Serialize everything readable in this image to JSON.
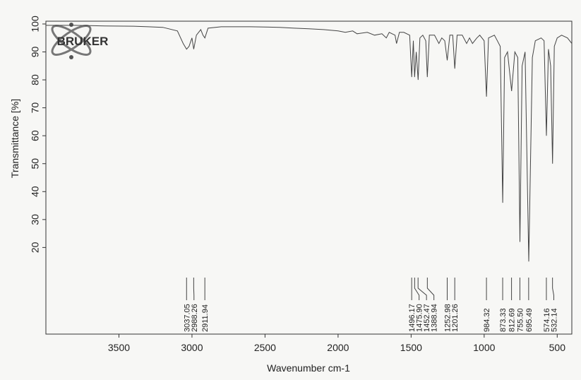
{
  "logo": "BRUKER",
  "chart_data": {
    "type": "line",
    "xlabel": "Wavenumber cm-1",
    "ylabel": "Transmittance [%]",
    "xlim": [
      4000,
      400
    ],
    "ylim": [
      -11,
      101
    ],
    "xticks": [
      3500,
      3000,
      2500,
      2000,
      1500,
      1000,
      500
    ],
    "yticks": [
      20,
      30,
      40,
      50,
      60,
      70,
      80,
      90,
      100
    ],
    "series": [
      {
        "color": "#444",
        "x": [
          4000,
          3800,
          3600,
          3400,
          3300,
          3200,
          3100,
          3060,
          3037,
          3020,
          3000,
          2988,
          2970,
          2940,
          2925,
          2912,
          2890,
          2800,
          2600,
          2400,
          2300,
          2200,
          2100,
          2000,
          1950,
          1900,
          1870,
          1800,
          1750,
          1700,
          1670,
          1650,
          1610,
          1600,
          1580,
          1550,
          1510,
          1496,
          1485,
          1476,
          1465,
          1452,
          1440,
          1420,
          1400,
          1389,
          1375,
          1340,
          1310,
          1290,
          1270,
          1253,
          1235,
          1215,
          1201,
          1185,
          1150,
          1120,
          1100,
          1080,
          1050,
          1030,
          1000,
          984,
          970,
          930,
          910,
          890,
          873,
          860,
          840,
          812,
          790,
          770,
          755,
          740,
          720,
          695,
          670,
          650,
          610,
          590,
          574,
          560,
          545,
          532,
          520,
          500,
          470,
          430,
          400
        ],
        "values": [
          99.5,
          99.5,
          99.3,
          99.2,
          99,
          98.8,
          97.5,
          93,
          91,
          92,
          95,
          91,
          96,
          98,
          96,
          95,
          98.5,
          99,
          99,
          98.8,
          98.5,
          98.3,
          98,
          97.5,
          97,
          97.5,
          96.5,
          97,
          96,
          96.5,
          95,
          97,
          96,
          93,
          97,
          97,
          96,
          81,
          94,
          81,
          90,
          80,
          95,
          96,
          94,
          81,
          96,
          96,
          93,
          95,
          94,
          87,
          96,
          96,
          84,
          96,
          96,
          93,
          95,
          93,
          95,
          96,
          94,
          74,
          95,
          96,
          94,
          92,
          36,
          88,
          90,
          76,
          90,
          88,
          22,
          85,
          90,
          15,
          88,
          94,
          95,
          94,
          60,
          91,
          85,
          50,
          92,
          95,
          96,
          95,
          93
        ]
      }
    ],
    "peaks": {
      "x": [
        3037.05,
        2988.26,
        2911.94,
        1496.17,
        1475.9,
        1452.47,
        1388.94,
        1252.98,
        1201.26,
        984.32,
        873.33,
        812.69,
        755.5,
        695.49,
        574.16,
        532.14
      ],
      "value_labels": [
        "3037.05",
        "2988.26",
        "2911.94",
        "1496.17",
        "1475.90",
        "1452.47",
        "1388.94",
        "1252.98",
        "1201.26",
        "984.32",
        "873.33",
        "812.69",
        "755.50",
        "695.49",
        "574.16",
        "532.14"
      ]
    }
  }
}
